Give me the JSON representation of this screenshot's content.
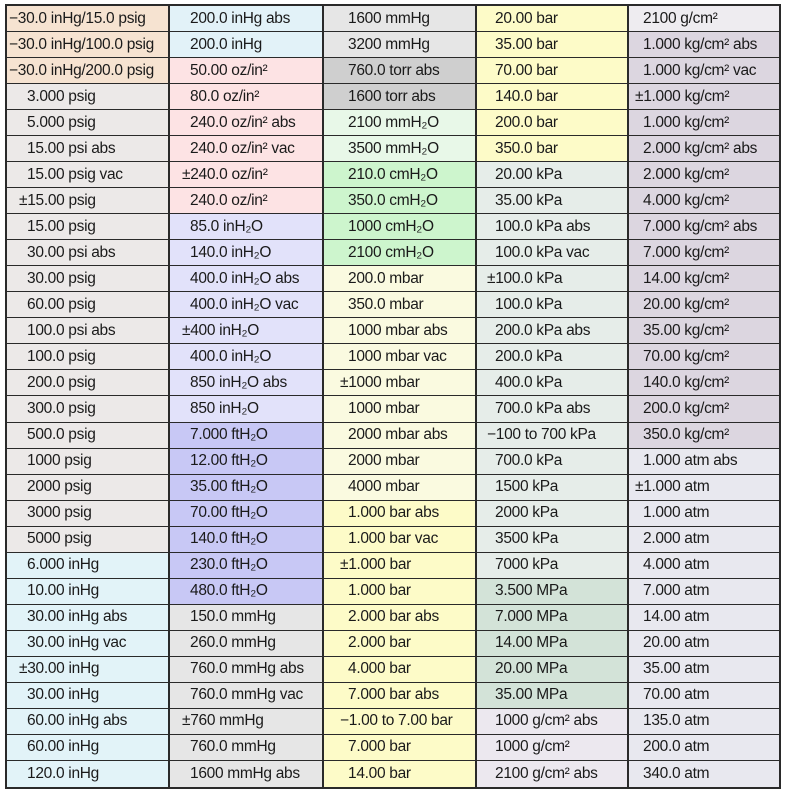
{
  "table": {
    "columns": [
      {
        "cells": [
          "−30.0 inHg/15.0 psig",
          "−30.0 inHg/100.0 psig",
          "−30.0 inHg/200.0 psig",
          "3.000 psig",
          "5.000 psig",
          "15.00 psi abs",
          "15.00 psig vac",
          "±15.00 psig",
          "15.00 psig",
          "30.00 psi abs",
          "30.00 psig",
          "60.00 psig",
          "100.0 psi abs",
          "100.0 psig",
          "200.0 psig",
          "300.0 psig",
          "500.0 psig",
          "1000 psig",
          "2000 psig",
          "3000 psig",
          "5000 psig",
          "6.000 inHg",
          "10.00 inHg",
          "30.00 inHg abs",
          "30.00 inHg vac",
          "±30.00 inHg",
          "30.00 inHg",
          "60.00 inHg abs",
          "60.00 inHg",
          "120.0 inHg"
        ],
        "bands": [
          {
            "from": 0,
            "to": 2,
            "color": "#f6e3d1"
          },
          {
            "from": 3,
            "to": 20,
            "color": "#ece9e8"
          },
          {
            "from": 21,
            "to": 29,
            "color": "#e2f3f8"
          }
        ]
      },
      {
        "cells": [
          "200.0 inHg abs",
          "200.0 inHg",
          "50.00 oz/in²",
          "80.0 oz/in²",
          "240.0 oz/in² abs",
          "240.0 oz/in² vac",
          "±240.0 oz/in²",
          "240.0 oz/in²",
          "85.0 inH₂O",
          "140.0 inH₂O",
          "400.0 inH₂O abs",
          "400.0 inH₂O vac",
          "±400 inH₂O",
          "400.0 inH₂O",
          "850 inH₂O abs",
          "850 inH₂O",
          "7.000 ftH₂O",
          "12.00 ftH₂O",
          "35.00 ftH₂O",
          "70.00 ftH₂O",
          "140.0 ftH₂O",
          "230.0 ftH₂O",
          "480.0 ftH₂O",
          "150.0 mmHg",
          "260.0 mmHg",
          "760.0 mmHg abs",
          "760.0 mmHg vac",
          "±760 mmHg",
          "760.0 mmHg",
          "1600 mmHg abs"
        ],
        "bands": [
          {
            "from": 0,
            "to": 1,
            "color": "#e2f2f8"
          },
          {
            "from": 2,
            "to": 7,
            "color": "#fde3e4"
          },
          {
            "from": 8,
            "to": 15,
            "color": "#e2e2fa"
          },
          {
            "from": 16,
            "to": 22,
            "color": "#c8c8f5"
          },
          {
            "from": 23,
            "to": 29,
            "color": "#e6e6e6"
          }
        ]
      },
      {
        "cells": [
          "1600 mmHg",
          "3200 mmHg",
          "760.0 torr abs",
          "1600 torr abs",
          "2100 mmH₂O",
          "3500 mmH₂O",
          "210.0 cmH₂O",
          "350.0 cmH₂O",
          "1000 cmH₂O",
          "2100 cmH₂O",
          "200.0 mbar",
          "350.0 mbar",
          "1000 mbar abs",
          "1000 mbar vac",
          "±1000 mbar",
          "1000 mbar",
          "2000 mbar abs",
          "2000 mbar",
          "4000 mbar",
          "1.000 bar abs",
          "1.000 bar vac",
          "±1.000 bar",
          "1.000 bar",
          "2.000 bar abs",
          "2.000 bar",
          "4.000 bar",
          "7.000 bar abs",
          "−1.00 to 7.00 bar",
          "7.000 bar",
          "14.00 bar"
        ],
        "bands": [
          {
            "from": 0,
            "to": 1,
            "color": "#e6e6e6"
          },
          {
            "from": 2,
            "to": 3,
            "color": "#cfcfcf"
          },
          {
            "from": 4,
            "to": 5,
            "color": "#e8f8e8"
          },
          {
            "from": 6,
            "to": 9,
            "color": "#cdf5cd"
          },
          {
            "from": 10,
            "to": 18,
            "color": "#fafae0"
          },
          {
            "from": 19,
            "to": 29,
            "color": "#fdfbc8"
          }
        ]
      },
      {
        "cells": [
          "20.00 bar",
          "35.00 bar",
          "70.00 bar",
          "140.0 bar",
          "200.0 bar",
          "350.0 bar",
          "20.00 kPa",
          "35.00 kPa",
          "100.0 kPa abs",
          "100.0 kPa vac",
          "±100.0 kPa",
          "100.0 kPa",
          "200.0 kPa abs",
          "200.0 kPa",
          "400.0 kPa",
          "700.0 kPa abs",
          "−100 to 700 kPa",
          "700.0 kPa",
          "1500 kPa",
          "2000 kPa",
          "3500 kPa",
          "7000 kPa",
          "3.500 MPa",
          "7.000 MPa",
          "14.00 MPa",
          "20.00 MPa",
          "35.00 MPa",
          "1000 g/cm² abs",
          "1000 g/cm²",
          "2100 g/cm² abs"
        ],
        "bands": [
          {
            "from": 0,
            "to": 5,
            "color": "#fdfbc8"
          },
          {
            "from": 6,
            "to": 21,
            "color": "#e6ede9"
          },
          {
            "from": 22,
            "to": 26,
            "color": "#d3e3d8"
          },
          {
            "from": 27,
            "to": 29,
            "color": "#ece8ef"
          }
        ]
      },
      {
        "cells": [
          "2100 g/cm²",
          "1.000 kg/cm² abs",
          "1.000 kg/cm² vac",
          "±1.000 kg/cm²",
          "1.000 kg/cm²",
          "2.000 kg/cm² abs",
          "2.000 kg/cm²",
          "4.000 kg/cm²",
          "7.000 kg/cm² abs",
          "7.000 kg/cm²",
          "14.00 kg/cm²",
          "20.00 kg/cm²",
          "35.00 kg/cm²",
          "70.00 kg/cm²",
          "140.0 kg/cm²",
          "200.0 kg/cm²",
          "350.0 kg/cm²",
          "1.000 atm abs",
          "±1.000 atm",
          "1.000 atm",
          "2.000 atm",
          "4.000 atm",
          "7.000 atm",
          "14.00 atm",
          "20.00 atm",
          "35.00 atm",
          "70.00 atm",
          "135.0 atm",
          "200.0 atm",
          "340.0 atm"
        ],
        "bands": [
          {
            "from": 0,
            "to": 0,
            "color": "#eeecf0"
          },
          {
            "from": 1,
            "to": 16,
            "color": "#dcd6e0"
          },
          {
            "from": 17,
            "to": 29,
            "color": "#e8e8ef"
          }
        ]
      }
    ]
  }
}
